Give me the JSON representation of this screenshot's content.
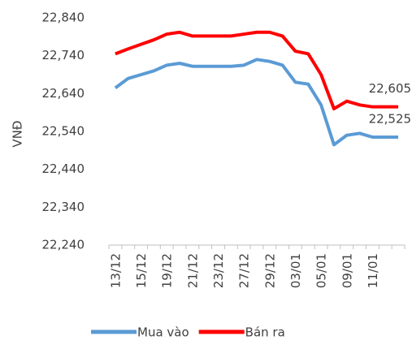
{
  "chart_data": {
    "type": "line",
    "y_label": "VNĐ",
    "categories": [
      "13/12",
      null,
      "15/12",
      null,
      "19/12",
      null,
      "21/12",
      null,
      "23/12",
      null,
      "27/12",
      null,
      "29/12",
      null,
      "03/01",
      null,
      "05/01",
      null,
      "09/01",
      null,
      "11/01",
      null,
      null
    ],
    "series": [
      {
        "name": "Mua vào",
        "color": "#5b9bd5",
        "values": [
          22655,
          22680,
          22690,
          22700,
          22715,
          22720,
          22712,
          22712,
          22712,
          22712,
          22715,
          22730,
          22725,
          22715,
          22670,
          22665,
          22610,
          22505,
          22530,
          22535,
          22525,
          22525,
          22525
        ],
        "value_labels": [
          null,
          null,
          null,
          null,
          null,
          null,
          null,
          null,
          null,
          null,
          null,
          null,
          null,
          null,
          null,
          null,
          null,
          null,
          null,
          null,
          null,
          null,
          "22,525"
        ]
      },
      {
        "name": "Bán ra",
        "color": "#ff0000",
        "values": [
          22745,
          22758,
          22770,
          22782,
          22797,
          22802,
          22792,
          22792,
          22792,
          22792,
          22797,
          22802,
          22802,
          22792,
          22752,
          22745,
          22690,
          22600,
          22620,
          22610,
          22605,
          22605,
          22605
        ],
        "value_labels": [
          null,
          null,
          null,
          null,
          null,
          null,
          null,
          null,
          null,
          null,
          null,
          null,
          null,
          null,
          null,
          null,
          null,
          null,
          null,
          null,
          null,
          null,
          "22,605"
        ]
      }
    ],
    "ylim": [
      22240,
      22840
    ],
    "yticks": [
      {
        "value": 22240,
        "label": "22,240"
      },
      {
        "value": 22340,
        "label": "22,340"
      },
      {
        "value": 22440,
        "label": "22,440"
      },
      {
        "value": 22540,
        "label": "22,540"
      },
      {
        "value": 22640,
        "label": "22,640"
      },
      {
        "value": 22740,
        "label": "22,740"
      },
      {
        "value": 22840,
        "label": "22,840"
      }
    ],
    "grid": false,
    "legend": "bottom"
  }
}
